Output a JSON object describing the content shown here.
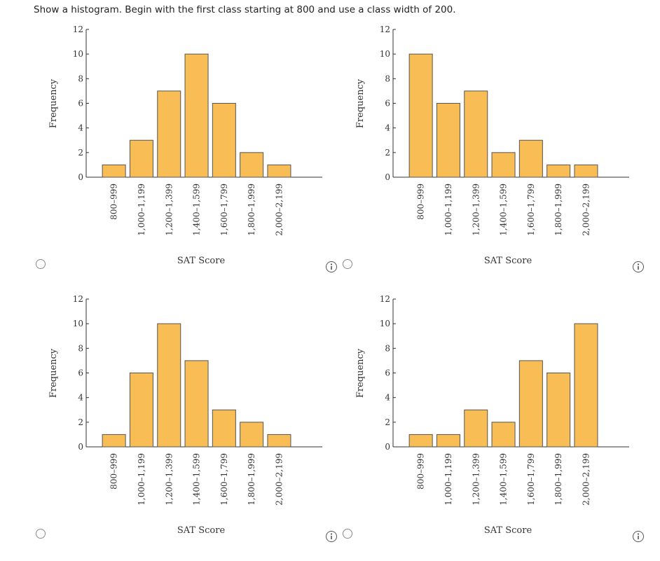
{
  "question": "Show a histogram. Begin with the first class starting at 800 and use a class width of 200.",
  "chart_data": [
    {
      "type": "bar",
      "xlabel": "SAT Score",
      "ylabel": "Frequency",
      "color": "#f9bd55",
      "categories": [
        "800–999",
        "1,000–1,199",
        "1,200–1,399",
        "1,400–1,599",
        "1,600–1,799",
        "1,800–1,999",
        "2,000–2,199"
      ],
      "values": [
        1,
        3,
        7,
        10,
        6,
        2,
        1
      ],
      "ylim": [
        0,
        12
      ],
      "yticks": [
        0,
        2,
        4,
        6,
        8,
        10,
        12
      ]
    },
    {
      "type": "bar",
      "xlabel": "SAT Score",
      "ylabel": "Frequency",
      "color": "#f9bd55",
      "categories": [
        "800–999",
        "1,000–1,199",
        "1,200–1,399",
        "1,400–1,599",
        "1,600–1,799",
        "1,800–1,999",
        "2,000–2,199"
      ],
      "values": [
        10,
        6,
        7,
        2,
        3,
        1,
        1
      ],
      "ylim": [
        0,
        12
      ],
      "yticks": [
        0,
        2,
        4,
        6,
        8,
        10,
        12
      ]
    },
    {
      "type": "bar",
      "xlabel": "SAT Score",
      "ylabel": "Frequency",
      "color": "#f9bd55",
      "categories": [
        "800–999",
        "1,000–1,199",
        "1,200–1,399",
        "1,400–1,599",
        "1,600–1,799",
        "1,800–1,999",
        "2,000–2,199"
      ],
      "values": [
        1,
        6,
        10,
        7,
        3,
        2,
        1
      ],
      "ylim": [
        0,
        12
      ],
      "yticks": [
        0,
        2,
        4,
        6,
        8,
        10,
        12
      ]
    },
    {
      "type": "bar",
      "xlabel": "SAT Score",
      "ylabel": "Frequency",
      "color": "#f9bd55",
      "categories": [
        "800–999",
        "1,000–1,199",
        "1,200–1,399",
        "1,400–1,599",
        "1,600–1,799",
        "1,800–1,999",
        "2,000–2,199"
      ],
      "values": [
        1,
        1,
        3,
        2,
        7,
        6,
        10
      ],
      "ylim": [
        0,
        12
      ],
      "yticks": [
        0,
        2,
        4,
        6,
        8,
        10,
        12
      ]
    }
  ]
}
